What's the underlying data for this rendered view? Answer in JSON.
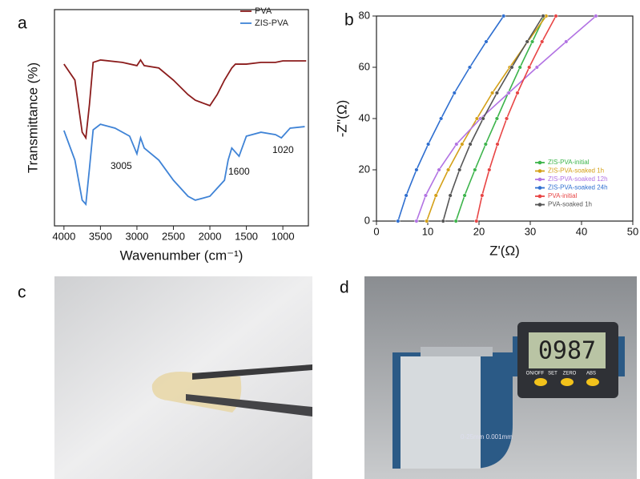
{
  "chart_data": [
    {
      "type": "line",
      "label": "a",
      "xlabel": "Wavenumber (cm⁻¹)",
      "ylabel": "Transmittance (%)",
      "xlim": [
        4130,
        650
      ],
      "xticks": [
        4000,
        3500,
        3000,
        2500,
        2000,
        1500,
        1000
      ],
      "ylim": [
        0,
        100
      ],
      "yticks": [],
      "grid": false,
      "markers": false,
      "legend": "upper right",
      "annotations": [
        "3005",
        "1600",
        "1020"
      ],
      "series": [
        {
          "name": "PVA",
          "color": "#8b1c1c",
          "x": [
            4000,
            3850,
            3750,
            3700,
            3650,
            3600,
            3500,
            3200,
            3000,
            2950,
            2900,
            2700,
            2500,
            2300,
            2200,
            2000,
            1900,
            1800,
            1700,
            1650,
            1500,
            1300,
            1100,
            1000,
            800,
            680
          ],
          "values": [
            74.8,
            67.4,
            43.3,
            40.7,
            56.3,
            75.6,
            76.7,
            75.6,
            74.1,
            76.7,
            74.1,
            73,
            67.4,
            60.7,
            58.1,
            55.6,
            60.7,
            67.4,
            73,
            74.8,
            74.8,
            75.6,
            75.6,
            76.3,
            76.3,
            76.3
          ]
        },
        {
          "name": "ZIS-PVA",
          "color": "#3f83d6",
          "x": [
            4000,
            3850,
            3750,
            3700,
            3650,
            3600,
            3500,
            3300,
            3100,
            3000,
            2950,
            2900,
            2700,
            2500,
            2300,
            2200,
            2000,
            1800,
            1750,
            1700,
            1600,
            1500,
            1300,
            1100,
            1020,
            900,
            700
          ],
          "values": [
            44.1,
            30.4,
            11.9,
            10,
            26.7,
            44.4,
            47,
            45.2,
            41.5,
            33.3,
            40.7,
            36,
            30.4,
            21.1,
            13.7,
            11.9,
            13.7,
            21.1,
            30.4,
            36,
            32.2,
            41.5,
            43.3,
            42.2,
            40.7,
            45.2,
            45.9
          ]
        }
      ]
    },
    {
      "type": "line",
      "label": "b",
      "xlabel": "Z'(Ω)",
      "ylabel": "-Z''(Ω)",
      "xlim": [
        0,
        50
      ],
      "xticks": [
        0,
        10,
        20,
        30,
        40,
        50
      ],
      "ylim": [
        0,
        80
      ],
      "yticks": [
        0,
        20,
        40,
        60,
        80
      ],
      "grid": false,
      "markers": true,
      "legend": "lower right",
      "series": [
        {
          "name": "ZIS-PVA-initial",
          "color": "#3cb44b",
          "x": [
            15.5,
            17.2,
            19.2,
            21.3,
            23.5,
            25.7,
            28.0,
            30.4,
            32.8
          ],
          "values": [
            0,
            10,
            20,
            30,
            40,
            50,
            60,
            70,
            80
          ]
        },
        {
          "name": "ZIS-PVA-soaked  1h",
          "color": "#d4a017",
          "x": [
            9.8,
            11.6,
            14.0,
            16.7,
            19.6,
            22.6,
            26.0,
            29.5,
            33.1
          ],
          "values": [
            0,
            10,
            20,
            30,
            40,
            50,
            60,
            70,
            80
          ]
        },
        {
          "name": "ZIS-PVA-soaked 12h",
          "color": "#b273e3",
          "x": [
            7.8,
            9.6,
            12.2,
            15.6,
            20.3,
            25.8,
            31.3,
            37.0,
            42.8
          ],
          "values": [
            0,
            10,
            20,
            30,
            40,
            50,
            60,
            70,
            80
          ]
        },
        {
          "name": "ZIS-PVA-soaked 24h",
          "color": "#2f6fd0",
          "x": [
            4.2,
            5.8,
            7.8,
            10.1,
            12.6,
            15.2,
            18.2,
            21.4,
            24.8
          ],
          "values": [
            0,
            10,
            20,
            30,
            40,
            50,
            60,
            70,
            80
          ]
        },
        {
          "name": "PVA-initial",
          "color": "#e84545",
          "x": [
            19.5,
            20.6,
            22.0,
            23.6,
            25.4,
            27.5,
            29.8,
            32.3,
            35.0
          ],
          "values": [
            0,
            10,
            20,
            30,
            40,
            50,
            60,
            70,
            80
          ]
        },
        {
          "name": "PVA-soaked 1h",
          "color": "#555555",
          "x": [
            13.0,
            14.4,
            16.2,
            18.3,
            20.8,
            23.5,
            26.4,
            29.4,
            32.5
          ],
          "values": [
            0,
            10,
            20,
            30,
            40,
            50,
            60,
            70,
            80
          ]
        }
      ]
    }
  ],
  "photos": [
    {
      "label": "c"
    },
    {
      "label": "d",
      "display": "0987",
      "buttons": [
        "ON/OFF",
        "SET",
        "ZERO",
        "ABS"
      ],
      "spec": "0-25mm 0.001mm"
    }
  ]
}
